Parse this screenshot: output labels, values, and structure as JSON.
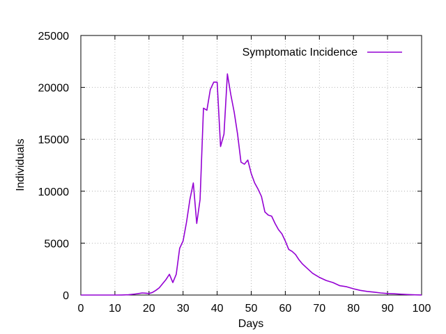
{
  "chart_data": {
    "type": "line",
    "title": "",
    "xlabel": "Days",
    "ylabel": "Individuals",
    "xlim": [
      0,
      100
    ],
    "ylim": [
      0,
      25000
    ],
    "x_ticks": [
      0,
      10,
      20,
      30,
      40,
      50,
      60,
      70,
      80,
      90,
      100
    ],
    "y_ticks": [
      0,
      5000,
      10000,
      15000,
      20000,
      25000
    ],
    "grid": true,
    "legend_position": "top-right",
    "series": [
      {
        "name": "Symptomatic Incidence",
        "color": "#9400d3",
        "x": [
          0,
          5,
          10,
          12,
          14,
          15,
          16,
          17,
          18,
          19,
          20,
          21,
          22,
          23,
          24,
          25,
          26,
          27,
          28,
          29,
          30,
          31,
          32,
          33,
          34,
          35,
          36,
          37,
          38,
          39,
          40,
          41,
          42,
          43,
          44,
          45,
          46,
          47,
          48,
          49,
          50,
          51,
          52,
          53,
          54,
          55,
          56,
          57,
          58,
          59,
          60,
          61,
          62,
          63,
          64,
          65,
          66,
          67,
          68,
          69,
          70,
          72,
          74,
          76,
          78,
          80,
          82,
          84,
          86,
          88,
          90,
          92,
          94,
          96,
          98,
          100
        ],
        "y": [
          0,
          0,
          0,
          10,
          30,
          60,
          100,
          150,
          200,
          180,
          150,
          250,
          450,
          700,
          1100,
          1500,
          2000,
          1200,
          2000,
          4500,
          5200,
          7000,
          9200,
          10800,
          6900,
          9200,
          18000,
          17800,
          19800,
          20500,
          20500,
          14300,
          15500,
          21300,
          19300,
          17600,
          15500,
          12800,
          12600,
          13000,
          11700,
          10800,
          10200,
          9500,
          8000,
          7700,
          7600,
          6900,
          6300,
          5900,
          5200,
          4400,
          4200,
          3900,
          3400,
          3000,
          2700,
          2400,
          2100,
          1900,
          1700,
          1400,
          1200,
          900,
          800,
          600,
          450,
          350,
          280,
          200,
          150,
          120,
          80,
          50,
          20,
          10
        ]
      }
    ]
  }
}
